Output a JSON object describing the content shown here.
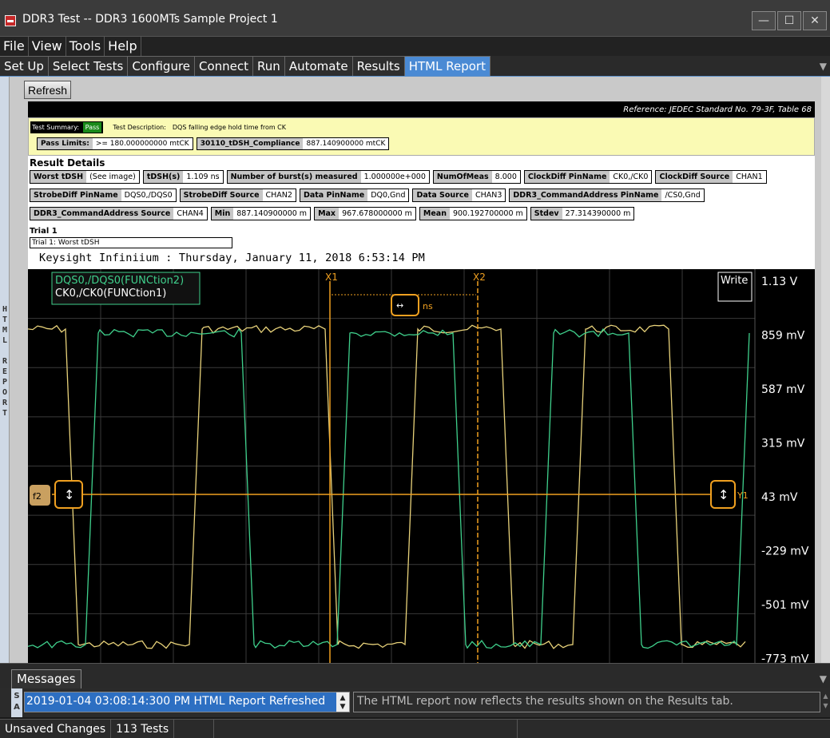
{
  "window": {
    "title": "DDR3 Test -- DDR3 1600MTs Sample Project 1",
    "controls": [
      "—",
      "☐",
      "✕"
    ]
  },
  "menu": [
    "File",
    "View",
    "Tools",
    "Help"
  ],
  "tabs": [
    {
      "label": "Set Up"
    },
    {
      "label": "Select Tests"
    },
    {
      "label": "Configure"
    },
    {
      "label": "Connect"
    },
    {
      "label": "Run"
    },
    {
      "label": "Automate"
    },
    {
      "label": "Results"
    },
    {
      "label": "HTML Report",
      "active": true
    }
  ],
  "sidebar": {
    "label": "HTML REPORT"
  },
  "toolbar": {
    "refresh_label": "Refresh"
  },
  "report": {
    "reference": "Reference: JEDEC Standard No. 79-3F, Table 68",
    "summary": {
      "label": "Test Summary:",
      "status": "Pass",
      "description_label": "Test Description:",
      "description": "DQS falling edge hold time from CK",
      "pass_limits_key": "Pass Limits:",
      "pass_limits_value": ">= 180.000000000 mtCK",
      "compliance_key": "30110_tDSH_Compliance",
      "compliance_value": "887.140900000 mtCK"
    },
    "result_details_title": "Result Details",
    "details": [
      {
        "k": "Worst tDSH",
        "v": "(See image)"
      },
      {
        "k": "tDSH(s)",
        "v": "1.109 ns"
      },
      {
        "k": "Number of burst(s) measured",
        "v": "1.000000e+000"
      },
      {
        "k": "NumOfMeas",
        "v": "8.000"
      },
      {
        "k": "ClockDiff PinName",
        "v": "CK0,/CK0"
      },
      {
        "k": "ClockDiff Source",
        "v": "CHAN1"
      },
      {
        "k": "StrobeDiff PinName",
        "v": "DQS0,/DQS0"
      },
      {
        "k": "StrobeDiff Source",
        "v": "CHAN2"
      },
      {
        "k": "Data PinName",
        "v": "DQ0,Gnd"
      },
      {
        "k": "Data Source",
        "v": "CHAN3"
      },
      {
        "k": "DDR3_CommandAddress PinName",
        "v": "/CS0,Gnd"
      },
      {
        "k": "DDR3_CommandAddress Source",
        "v": "CHAN4"
      },
      {
        "k": "Min",
        "v": "887.140900000 m"
      },
      {
        "k": "Max",
        "v": "967.678000000 m"
      },
      {
        "k": "Mean",
        "v": "900.192700000 m"
      },
      {
        "k": "Stdev",
        "v": "27.314390000 m"
      }
    ],
    "trial_title": "Trial 1",
    "trial_caption": "Trial 1: Worst tDSH",
    "scope_caption": "Keysight Infiniium : Thursday, January 11, 2018 6:53:14 PM"
  },
  "scope": {
    "legend": [
      "DQS0,/DQS0(FUNCtion2)",
      "CK0,/CK0(FUNCtion1)"
    ],
    "write_label": "Write",
    "cursor_x1": "X1",
    "cursor_x2": "X2",
    "delta_unit": "ns",
    "y_cursor_label": "Y1",
    "y_ticks": [
      "1.13 V",
      "859 mV",
      "587 mV",
      "315 mV",
      "43 mV",
      "-229 mV",
      "-501 mV",
      "-773 mV"
    ],
    "colors": {
      "dqs": "#e8d27a",
      "ck": "#3fd08c",
      "cursor": "#f0a020",
      "grid": "#3a3a3a"
    },
    "ref_marker": "f2"
  },
  "messages": {
    "tab_label": "Messages",
    "side_label": "SA",
    "selected": "2019-01-04 03:08:14:300 PM HTML Report Refreshed",
    "detail": "The HTML report now reflects the results shown on the Results tab."
  },
  "status": {
    "unsaved": "Unsaved Changes",
    "tests": "113 Tests"
  }
}
